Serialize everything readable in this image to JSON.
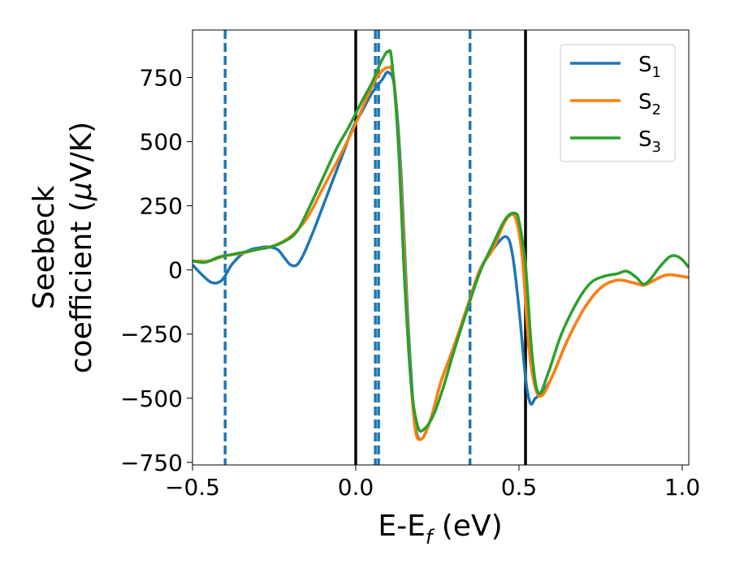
{
  "chart_data": {
    "type": "line",
    "xlabel": {
      "main": "E-E",
      "sub": "f",
      "unit": " (eV)"
    },
    "ylabel": {
      "line1": "Seebeck",
      "line2_prefix": "coefficient  (",
      "mu": "μ",
      "line2_suffix": "V/K)"
    },
    "xlim": [
      -0.5,
      1.02
    ],
    "ylim": [
      -760,
      935
    ],
    "xticks": [
      -0.5,
      0.0,
      0.5,
      1.0
    ],
    "xtick_labels": [
      "−0.5",
      "0.0",
      "0.5",
      "1.0"
    ],
    "yticks": [
      -750,
      -500,
      -250,
      0,
      250,
      500,
      750
    ],
    "ytick_labels": [
      "−750",
      "−500",
      "−250",
      "0",
      "250",
      "500",
      "750"
    ],
    "grid": false,
    "legend_position": "top-right",
    "vlines_solid": [
      0.0,
      0.52
    ],
    "vlines_dashed": [
      -0.4,
      0.06,
      0.07,
      0.35
    ],
    "series": [
      {
        "name": "S",
        "sub": "1",
        "color": "#1f77b4",
        "x": [
          -0.5,
          -0.47,
          -0.44,
          -0.41,
          -0.38,
          -0.35,
          -0.32,
          -0.3,
          -0.27,
          -0.24,
          -0.22,
          -0.2,
          -0.18,
          -0.16,
          -0.13,
          -0.1,
          -0.07,
          -0.04,
          -0.01,
          0.02,
          0.05,
          0.08,
          0.1,
          0.12,
          0.14,
          0.16,
          0.18,
          0.2,
          0.23,
          0.26,
          0.3,
          0.34,
          0.38,
          0.42,
          0.46,
          0.48,
          0.5,
          0.52,
          0.535,
          0.55,
          0.57,
          0.6,
          0.65,
          0.7,
          0.75,
          0.8,
          0.85,
          0.88,
          0.9,
          0.95,
          1.0,
          1.02
        ],
        "y": [
          20,
          -20,
          -50,
          -40,
          20,
          60,
          80,
          85,
          90,
          80,
          50,
          20,
          20,
          60,
          150,
          250,
          350,
          450,
          550,
          620,
          690,
          740,
          770,
          700,
          350,
          -200,
          -580,
          -660,
          -580,
          -440,
          -300,
          -150,
          0,
          80,
          130,
          60,
          -150,
          -420,
          -520,
          -500,
          -480,
          -420,
          -270,
          -150,
          -70,
          -40,
          -50,
          -60,
          -50,
          -20,
          -25,
          -30
        ]
      },
      {
        "name": "S",
        "sub": "2",
        "color": "#ff7f0e",
        "x": [
          -0.5,
          -0.45,
          -0.4,
          -0.35,
          -0.3,
          -0.25,
          -0.2,
          -0.15,
          -0.1,
          -0.05,
          0.0,
          0.03,
          0.06,
          0.08,
          0.1,
          0.11,
          0.12,
          0.14,
          0.16,
          0.18,
          0.2,
          0.23,
          0.26,
          0.3,
          0.34,
          0.38,
          0.42,
          0.45,
          0.47,
          0.49,
          0.51,
          0.53,
          0.55,
          0.57,
          0.6,
          0.65,
          0.7,
          0.75,
          0.8,
          0.85,
          0.88,
          0.9,
          0.95,
          1.0,
          1.02
        ],
        "y": [
          35,
          35,
          55,
          65,
          80,
          95,
          130,
          200,
          320,
          440,
          570,
          660,
          740,
          775,
          790,
          780,
          700,
          300,
          -250,
          -600,
          -660,
          -580,
          -440,
          -300,
          -150,
          0,
          80,
          170,
          210,
          200,
          50,
          -300,
          -460,
          -490,
          -420,
          -270,
          -150,
          -70,
          -40,
          -50,
          -60,
          -50,
          -20,
          -25,
          -30
        ]
      },
      {
        "name": "S",
        "sub": "3",
        "color": "#2ca02c",
        "x": [
          -0.5,
          -0.46,
          -0.42,
          -0.38,
          -0.34,
          -0.3,
          -0.26,
          -0.22,
          -0.18,
          -0.14,
          -0.1,
          -0.06,
          -0.02,
          0.0,
          0.02,
          0.05,
          0.07,
          0.09,
          0.1,
          0.11,
          0.13,
          0.15,
          0.17,
          0.19,
          0.21,
          0.24,
          0.27,
          0.3,
          0.34,
          0.38,
          0.42,
          0.45,
          0.47,
          0.49,
          0.5,
          0.52,
          0.54,
          0.56,
          0.59,
          0.63,
          0.68,
          0.72,
          0.76,
          0.8,
          0.83,
          0.86,
          0.88,
          0.9,
          0.93,
          0.96,
          0.98,
          1.0,
          1.02
        ],
        "y": [
          35,
          30,
          50,
          60,
          70,
          80,
          90,
          110,
          150,
          250,
          360,
          470,
          560,
          610,
          660,
          730,
          790,
          840,
          850,
          820,
          500,
          -50,
          -450,
          -610,
          -620,
          -560,
          -450,
          -320,
          -160,
          -10,
          100,
          180,
          215,
          220,
          190,
          20,
          -330,
          -480,
          -400,
          -250,
          -120,
          -50,
          -25,
          -15,
          -5,
          -30,
          -55,
          -40,
          10,
          50,
          55,
          40,
          10
        ]
      }
    ]
  }
}
